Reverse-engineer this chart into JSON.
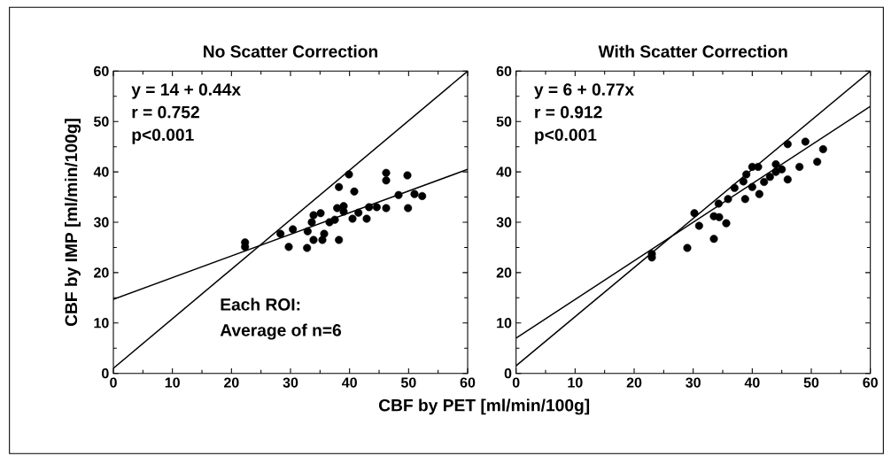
{
  "chart_data": [
    {
      "type": "scatter",
      "title": "No Scatter Correction",
      "ylabel": "CBF by IMP [ml/min/100g]",
      "xlim": [
        0,
        60
      ],
      "ylim": [
        0,
        60
      ],
      "xticks": [
        0,
        10,
        20,
        30,
        40,
        50,
        60
      ],
      "yticks": [
        0,
        10,
        20,
        30,
        40,
        50,
        60
      ],
      "grid": false,
      "annotations": [
        "y = 14 + 0.44x",
        "r = 0.752",
        "p<0.001",
        "Each ROI:",
        "Average of n=6"
      ],
      "series": [
        {
          "marker": "circle",
          "color": "#000000",
          "x": [
            22.3,
            22.3,
            28.3,
            29.7,
            30.4,
            32.9,
            32.8,
            33.9,
            35.4,
            35.7,
            38.2,
            33.6,
            33.9,
            35.1,
            36.6,
            37.5,
            37.9,
            39.0,
            39.0,
            40.5,
            41.5,
            42.9,
            43.3,
            44.6,
            46.2,
            48.3,
            49.9,
            51.0,
            52.3,
            38.2,
            40.8,
            39.9,
            46.2,
            46.2,
            49.8
          ],
          "values": [
            26.0,
            25.1,
            27.7,
            25.1,
            28.6,
            28.2,
            24.9,
            26.5,
            26.5,
            27.7,
            26.5,
            30.0,
            31.4,
            31.8,
            30.0,
            30.5,
            32.8,
            33.2,
            32.1,
            30.7,
            31.9,
            30.7,
            33.0,
            33.0,
            32.8,
            35.4,
            32.8,
            35.6,
            35.2,
            37.0,
            36.1,
            39.5,
            39.8,
            38.3,
            39.3
          ]
        },
        {
          "type": "line",
          "color": "#000000",
          "x": [
            0,
            60
          ],
          "values": [
            14.7,
            40.5
          ]
        },
        {
          "type": "line",
          "color": "#000000",
          "x": [
            0,
            60
          ],
          "values": [
            1,
            60
          ]
        }
      ]
    },
    {
      "type": "scatter",
      "title": "With Scatter Correction",
      "xlabel": "CBF by PET [ml/min/100g]",
      "xlim": [
        0,
        60
      ],
      "ylim": [
        0,
        60
      ],
      "xticks": [
        0,
        10,
        20,
        30,
        40,
        50,
        60
      ],
      "yticks": [
        0,
        10,
        20,
        30,
        40,
        50,
        60
      ],
      "grid": false,
      "annotations": [
        "y = 6 + 0.77x",
        "r = 0.912",
        "p<0.001"
      ],
      "series": [
        {
          "marker": "circle",
          "color": "#000000",
          "x": [
            23.0,
            23.0,
            29.0,
            33.5,
            30.2,
            31.0,
            33.5,
            34.4,
            35.6,
            34.3,
            35.9,
            38.8,
            41.2,
            37.0,
            38.5,
            39.0,
            40.0,
            40.0,
            41.0,
            42.0,
            43.0,
            44.0,
            44.0,
            45.0,
            46.0,
            46.0,
            48.0,
            49.0,
            51.0,
            52.0
          ],
          "values": [
            23.7,
            23.0,
            24.9,
            26.7,
            31.8,
            29.3,
            31.2,
            31.0,
            29.8,
            33.7,
            34.6,
            34.6,
            35.6,
            36.8,
            38.1,
            39.5,
            41.0,
            37.0,
            41.0,
            38.0,
            39.0,
            41.5,
            40.0,
            40.5,
            45.5,
            38.5,
            41.0,
            46.0,
            42.0,
            44.5
          ]
        },
        {
          "type": "line",
          "color": "#000000",
          "x": [
            0,
            60
          ],
          "values": [
            7,
            53
          ]
        },
        {
          "type": "line",
          "color": "#000000",
          "x": [
            0,
            60
          ],
          "values": [
            1.5,
            60
          ]
        }
      ]
    }
  ]
}
